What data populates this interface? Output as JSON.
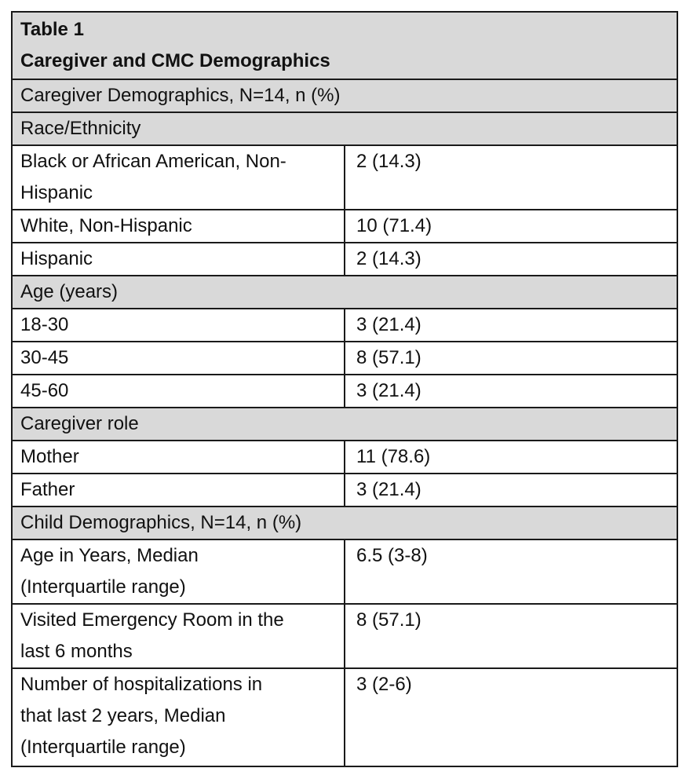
{
  "table": {
    "title_line1": "Table 1",
    "title_line2": "Caregiver and CMC Demographics",
    "caregiver_section": "Caregiver Demographics, N=14, n (%)",
    "race_header": "Race/Ethnicity",
    "race_rows": [
      {
        "label_line1": "Black or African American, Non-",
        "label_line2": "Hispanic",
        "value": "2 (14.3)"
      },
      {
        "label": "White, Non-Hispanic",
        "value": "10 (71.4)"
      },
      {
        "label": "Hispanic",
        "value": "2 (14.3)"
      }
    ],
    "age_header": "Age (years)",
    "age_rows": [
      {
        "label": "18-30",
        "value": "3 (21.4)"
      },
      {
        "label": "30-45",
        "value": "8 (57.1)"
      },
      {
        "label": "45-60",
        "value": "3 (21.4)"
      }
    ],
    "role_header": "Caregiver role",
    "role_rows": [
      {
        "label": "Mother",
        "value": "11 (78.6)"
      },
      {
        "label": "Father",
        "value": "3 (21.4)"
      }
    ],
    "child_section": "Child Demographics, N=14, n (%)",
    "child_rows": [
      {
        "label_line1": "Age in Years, Median",
        "label_line2": "(Interquartile range)",
        "value": "6.5 (3-8)"
      },
      {
        "label_line1": "Visited Emergency Room in the",
        "label_line2": "last 6 months",
        "value": "8 (57.1)"
      },
      {
        "label_line1": "Number of hospitalizations in",
        "label_line2": "that last 2 years, Median",
        "label_line3": "(Interquartile range)",
        "value": "3 (2-6)"
      }
    ]
  }
}
